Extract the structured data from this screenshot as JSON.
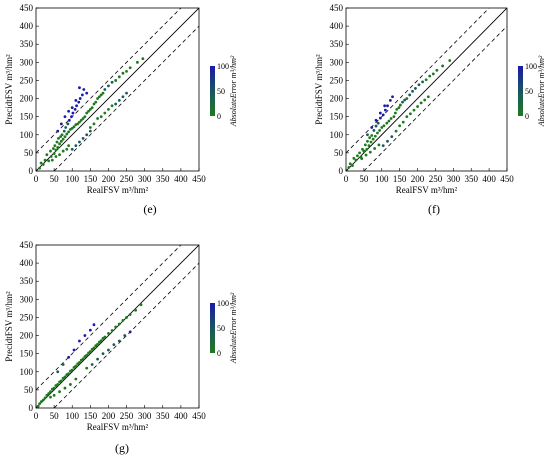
{
  "colors": {
    "high": "#1a1aa8",
    "low": "#1f7a1f",
    "mid": "#1a5a5a"
  },
  "chart_data": [
    {
      "type": "scatter",
      "panel_label": "(e)",
      "xlabel": "RealFSV m³/hm²",
      "ylabel": "PrecidtFSV m³/hm²",
      "colorbar_label": "AbsoluteError m³/hm²",
      "colorbar_ticks": [
        "100",
        "50",
        "0"
      ],
      "xlim": [
        0,
        450
      ],
      "ylim": [
        0,
        450
      ],
      "xticks": [
        "0",
        "50",
        "100",
        "150",
        "200",
        "250",
        "300",
        "350",
        "400",
        "450"
      ],
      "yticks": [
        "0",
        "50",
        "100",
        "150",
        "200",
        "250",
        "300",
        "350",
        "400",
        "450"
      ],
      "reference_lines": {
        "identity": "1:1 solid",
        "bands": "±50 dashed"
      },
      "points": [
        [
          10,
          8
        ],
        [
          14,
          22
        ],
        [
          20,
          18
        ],
        [
          25,
          30
        ],
        [
          30,
          45
        ],
        [
          35,
          28
        ],
        [
          40,
          55
        ],
        [
          42,
          40
        ],
        [
          48,
          62
        ],
        [
          50,
          48
        ],
        [
          52,
          70
        ],
        [
          55,
          58
        ],
        [
          58,
          80
        ],
        [
          60,
          65
        ],
        [
          62,
          90
        ],
        [
          65,
          75
        ],
        [
          68,
          95
        ],
        [
          70,
          82
        ],
        [
          72,
          100
        ],
        [
          75,
          88
        ],
        [
          78,
          110
        ],
        [
          80,
          95
        ],
        [
          82,
          120
        ],
        [
          85,
          102
        ],
        [
          88,
          130
        ],
        [
          90,
          108
        ],
        [
          92,
          140
        ],
        [
          95,
          115
        ],
        [
          98,
          150
        ],
        [
          100,
          118
        ],
        [
          102,
          160
        ],
        [
          105,
          122
        ],
        [
          108,
          170
        ],
        [
          110,
          128
        ],
        [
          112,
          180
        ],
        [
          115,
          130
        ],
        [
          118,
          190
        ],
        [
          120,
          135
        ],
        [
          122,
          200
        ],
        [
          125,
          140
        ],
        [
          128,
          210
        ],
        [
          130,
          145
        ],
        [
          132,
          225
        ],
        [
          135,
          150
        ],
        [
          140,
          160
        ],
        [
          145,
          165
        ],
        [
          150,
          170
        ],
        [
          155,
          175
        ],
        [
          160,
          185
        ],
        [
          165,
          190
        ],
        [
          170,
          200
        ],
        [
          175,
          205
        ],
        [
          180,
          210
        ],
        [
          185,
          215
        ],
        [
          190,
          225
        ],
        [
          200,
          235
        ],
        [
          210,
          245
        ],
        [
          220,
          250
        ],
        [
          230,
          260
        ],
        [
          240,
          270
        ],
        [
          250,
          275
        ],
        [
          260,
          285
        ],
        [
          280,
          300
        ],
        [
          295,
          310
        ],
        [
          60,
          110
        ],
        [
          70,
          130
        ],
        [
          80,
          150
        ],
        [
          90,
          165
        ],
        [
          100,
          175
        ],
        [
          110,
          195
        ],
        [
          120,
          230
        ],
        [
          140,
          215
        ],
        [
          150,
          120
        ],
        [
          160,
          130
        ],
        [
          170,
          145
        ],
        [
          180,
          150
        ],
        [
          190,
          160
        ],
        [
          200,
          170
        ],
        [
          210,
          180
        ],
        [
          220,
          185
        ],
        [
          230,
          195
        ],
        [
          240,
          205
        ],
        [
          250,
          215
        ],
        [
          100,
          60
        ],
        [
          110,
          70
        ],
        [
          120,
          80
        ],
        [
          130,
          90
        ],
        [
          140,
          100
        ],
        [
          150,
          110
        ],
        [
          90,
          70
        ],
        [
          85,
          60
        ],
        [
          75,
          55
        ],
        [
          65,
          45
        ],
        [
          55,
          40
        ],
        [
          45,
          30
        ]
      ]
    },
    {
      "type": "scatter",
      "panel_label": "(f)",
      "xlabel": "RealFSV m³/hm²",
      "ylabel": "PrecidtFSV m³/hm²",
      "colorbar_label": "AbsoluteError m³/hm²",
      "colorbar_ticks": [
        "100",
        "50",
        "0"
      ],
      "xlim": [
        0,
        450
      ],
      "ylim": [
        0,
        450
      ],
      "xticks": [
        "0",
        "50",
        "100",
        "150",
        "200",
        "250",
        "300",
        "350",
        "400",
        "450"
      ],
      "yticks": [
        "0",
        "50",
        "100",
        "150",
        "200",
        "250",
        "300",
        "350",
        "400",
        "450"
      ],
      "reference_lines": {
        "identity": "1:1 solid",
        "bands": "±50 dashed"
      },
      "points": [
        [
          8,
          10
        ],
        [
          12,
          20
        ],
        [
          18,
          15
        ],
        [
          22,
          35
        ],
        [
          28,
          30
        ],
        [
          32,
          42
        ],
        [
          38,
          50
        ],
        [
          42,
          38
        ],
        [
          46,
          60
        ],
        [
          50,
          55
        ],
        [
          54,
          72
        ],
        [
          58,
          60
        ],
        [
          60,
          82
        ],
        [
          64,
          70
        ],
        [
          66,
          92
        ],
        [
          70,
          80
        ],
        [
          72,
          98
        ],
        [
          76,
          88
        ],
        [
          78,
          112
        ],
        [
          82,
          96
        ],
        [
          84,
          124
        ],
        [
          88,
          105
        ],
        [
          90,
          132
        ],
        [
          94,
          112
        ],
        [
          96,
          146
        ],
        [
          100,
          120
        ],
        [
          104,
          155
        ],
        [
          106,
          125
        ],
        [
          110,
          168
        ],
        [
          114,
          132
        ],
        [
          116,
          180
        ],
        [
          120,
          138
        ],
        [
          124,
          195
        ],
        [
          126,
          145
        ],
        [
          130,
          205
        ],
        [
          134,
          150
        ],
        [
          138,
          160
        ],
        [
          142,
          170
        ],
        [
          148,
          175
        ],
        [
          152,
          182
        ],
        [
          158,
          190
        ],
        [
          164,
          196
        ],
        [
          170,
          200
        ],
        [
          178,
          210
        ],
        [
          186,
          220
        ],
        [
          194,
          228
        ],
        [
          204,
          238
        ],
        [
          214,
          246
        ],
        [
          224,
          252
        ],
        [
          234,
          262
        ],
        [
          244,
          268
        ],
        [
          254,
          278
        ],
        [
          270,
          290
        ],
        [
          290,
          305
        ],
        [
          60,
          100
        ],
        [
          72,
          120
        ],
        [
          84,
          140
        ],
        [
          96,
          160
        ],
        [
          108,
          180
        ],
        [
          140,
          110
        ],
        [
          150,
          125
        ],
        [
          160,
          135
        ],
        [
          170,
          150
        ],
        [
          180,
          158
        ],
        [
          190,
          168
        ],
        [
          200,
          178
        ],
        [
          210,
          188
        ],
        [
          220,
          196
        ],
        [
          230,
          205
        ],
        [
          104,
          70
        ],
        [
          116,
          82
        ],
        [
          128,
          95
        ],
        [
          92,
          72
        ],
        [
          80,
          62
        ],
        [
          68,
          52
        ],
        [
          56,
          44
        ],
        [
          44,
          34
        ]
      ]
    },
    {
      "type": "scatter",
      "panel_label": "(g)",
      "xlabel": "RealFSV m³/hm²",
      "ylabel": "PrecidtFSV m³/hm²",
      "colorbar_label": "AbsoluteError m³/hm²",
      "colorbar_ticks": [
        "100",
        "50",
        "0"
      ],
      "xlim": [
        0,
        450
      ],
      "ylim": [
        0,
        450
      ],
      "xticks": [
        "0",
        "50",
        "100",
        "150",
        "200",
        "250",
        "300",
        "350",
        "400",
        "450"
      ],
      "yticks": [
        "0",
        "50",
        "100",
        "150",
        "200",
        "250",
        "300",
        "350",
        "400",
        "450"
      ],
      "reference_lines": {
        "identity": "1:1 solid",
        "bands": "±50 dashed"
      },
      "points": [
        [
          6,
          5
        ],
        [
          10,
          12
        ],
        [
          15,
          18
        ],
        [
          20,
          22
        ],
        [
          25,
          28
        ],
        [
          30,
          35
        ],
        [
          35,
          40
        ],
        [
          40,
          45
        ],
        [
          45,
          52
        ],
        [
          50,
          55
        ],
        [
          55,
          62
        ],
        [
          60,
          65
        ],
        [
          65,
          72
        ],
        [
          70,
          75
        ],
        [
          75,
          82
        ],
        [
          80,
          86
        ],
        [
          85,
          92
        ],
        [
          90,
          95
        ],
        [
          95,
          102
        ],
        [
          100,
          105
        ],
        [
          105,
          112
        ],
        [
          110,
          116
        ],
        [
          115,
          122
        ],
        [
          120,
          126
        ],
        [
          125,
          132
        ],
        [
          130,
          136
        ],
        [
          135,
          142
        ],
        [
          140,
          146
        ],
        [
          145,
          152
        ],
        [
          150,
          156
        ],
        [
          155,
          162
        ],
        [
          160,
          166
        ],
        [
          165,
          172
        ],
        [
          170,
          176
        ],
        [
          175,
          182
        ],
        [
          180,
          186
        ],
        [
          185,
          192
        ],
        [
          190,
          196
        ],
        [
          200,
          206
        ],
        [
          210,
          214
        ],
        [
          220,
          224
        ],
        [
          230,
          232
        ],
        [
          240,
          242
        ],
        [
          250,
          250
        ],
        [
          260,
          258
        ],
        [
          275,
          270
        ],
        [
          290,
          285
        ],
        [
          60,
          100
        ],
        [
          75,
          120
        ],
        [
          90,
          140
        ],
        [
          105,
          160
        ],
        [
          120,
          185
        ],
        [
          135,
          200
        ],
        [
          150,
          215
        ],
        [
          160,
          230
        ],
        [
          140,
          110
        ],
        [
          155,
          120
        ],
        [
          170,
          135
        ],
        [
          185,
          150
        ],
        [
          200,
          160
        ],
        [
          215,
          175
        ],
        [
          230,
          185
        ],
        [
          245,
          200
        ],
        [
          260,
          210
        ],
        [
          110,
          80
        ],
        [
          95,
          65
        ],
        [
          80,
          55
        ],
        [
          65,
          45
        ],
        [
          50,
          35
        ],
        [
          40,
          30
        ]
      ]
    }
  ]
}
